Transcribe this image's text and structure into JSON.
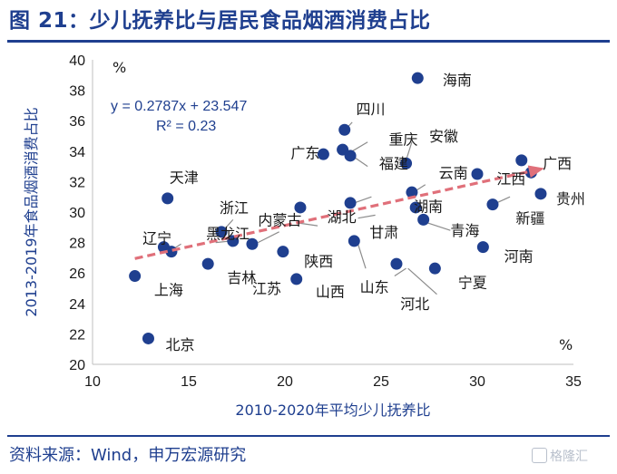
{
  "figure": {
    "title": "图 21：少儿抚养比与居民食品烟酒消费占比",
    "source": "资料来源：Wind，申万宏源研究",
    "watermark": "格隆汇"
  },
  "chart_data": {
    "type": "scatter",
    "xlabel": "2010-2020年平均少儿抚养比",
    "ylabel": "2013-2019年食品烟酒消费占比",
    "x_unit": "%",
    "y_unit": "%",
    "xlim": [
      10,
      35
    ],
    "ylim": [
      20,
      40
    ],
    "xticks": [
      10,
      15,
      20,
      25,
      30,
      35
    ],
    "yticks": [
      20,
      22,
      24,
      26,
      28,
      30,
      32,
      34,
      36,
      38,
      40
    ],
    "grid": false,
    "point_color": "#1f3f8f",
    "trend_color": "#e0707a",
    "trendline": {
      "slope": 0.2787,
      "intercept": 23.547,
      "x_range": [
        12.2,
        33.3
      ]
    },
    "equation": "y = 0.2787x + 23.547",
    "r_squared": "R² = 0.23",
    "points": [
      {
        "name": "北京",
        "x": 12.9,
        "y": 21.7
      },
      {
        "name": "上海",
        "x": 12.2,
        "y": 25.8
      },
      {
        "name": "天津",
        "x": 13.9,
        "y": 30.9
      },
      {
        "name": "辽宁",
        "x": 13.7,
        "y": 27.7
      },
      {
        "name": "",
        "x": 14.1,
        "y": 27.4
      },
      {
        "name": "黑龙江",
        "x": 16.0,
        "y": 26.6
      },
      {
        "name": "浙江",
        "x": 16.7,
        "y": 28.7
      },
      {
        "name": "吉林",
        "x": 17.3,
        "y": 28.1
      },
      {
        "name": "内蒙古",
        "x": 18.3,
        "y": 27.9
      },
      {
        "name": "江苏",
        "x": 19.9,
        "y": 27.4
      },
      {
        "name": "陕西",
        "x": 20.8,
        "y": 30.3
      },
      {
        "name": "山西",
        "x": 20.6,
        "y": 25.6
      },
      {
        "name": "广东",
        "x": 22.0,
        "y": 33.8
      },
      {
        "name": "四川",
        "x": 23.1,
        "y": 35.4
      },
      {
        "name": "重庆",
        "x": 23.0,
        "y": 34.1
      },
      {
        "name": "",
        "x": 23.4,
        "y": 33.7
      },
      {
        "name": "福建",
        "x": 23.4,
        "y": 30.6
      },
      {
        "name": "湖北",
        "x": 23.6,
        "y": 28.1
      },
      {
        "name": "山东",
        "x": 25.8,
        "y": 26.6
      },
      {
        "name": "安徽",
        "x": 26.3,
        "y": 33.2
      },
      {
        "name": "甘肃",
        "x": 26.6,
        "y": 31.3
      },
      {
        "name": "河北",
        "x": 26.8,
        "y": 30.3
      },
      {
        "name": "海南",
        "x": 26.9,
        "y": 38.8
      },
      {
        "name": "湖南",
        "x": 27.2,
        "y": 29.5
      },
      {
        "name": "宁夏",
        "x": 27.8,
        "y": 26.3
      },
      {
        "name": "云南",
        "x": 30.0,
        "y": 32.5
      },
      {
        "name": "河南",
        "x": 30.3,
        "y": 27.7
      },
      {
        "name": "青海",
        "x": 30.8,
        "y": 30.5
      },
      {
        "name": "江西",
        "x": 32.3,
        "y": 33.4
      },
      {
        "name": "广西",
        "x": 32.8,
        "y": 32.6
      },
      {
        "name": "贵州",
        "x": 33.3,
        "y": 31.2
      }
    ],
    "labels": [
      {
        "text": "海南",
        "x": 28.2,
        "y": 38.7
      },
      {
        "text": "四川",
        "x": 23.7,
        "y": 36.8
      },
      {
        "text": "重庆",
        "x": 25.4,
        "y": 34.8
      },
      {
        "text": "安徽",
        "x": 27.5,
        "y": 35.0
      },
      {
        "text": "广东",
        "x": 20.3,
        "y": 33.9
      },
      {
        "text": "福建",
        "x": 24.9,
        "y": 33.2
      },
      {
        "text": "云南",
        "x": 28.0,
        "y": 32.6
      },
      {
        "text": "广西",
        "x": 33.4,
        "y": 33.2
      },
      {
        "text": "江西",
        "x": 31.0,
        "y": 32.2
      },
      {
        "text": "天津",
        "x": 14.0,
        "y": 32.3
      },
      {
        "text": "浙江",
        "x": 16.6,
        "y": 30.3
      },
      {
        "text": "内蒙古",
        "x": 18.6,
        "y": 29.5
      },
      {
        "text": "湖北",
        "x": 22.2,
        "y": 29.7
      },
      {
        "text": "湖南",
        "x": 26.7,
        "y": 30.4
      },
      {
        "text": "贵州",
        "x": 34.1,
        "y": 30.9
      },
      {
        "text": "新疆",
        "x": 32.0,
        "y": 29.6
      },
      {
        "text": "甘肃",
        "x": 24.4,
        "y": 28.7
      },
      {
        "text": "青海",
        "x": 28.6,
        "y": 28.8
      },
      {
        "text": "辽宁",
        "x": 12.6,
        "y": 28.3
      },
      {
        "text": "黑龙江",
        "x": 15.9,
        "y": 28.6
      },
      {
        "text": "河南",
        "x": 31.4,
        "y": 27.1
      },
      {
        "text": "陕西",
        "x": 21.0,
        "y": 26.8
      },
      {
        "text": "吉林",
        "x": 17.0,
        "y": 25.7
      },
      {
        "text": "江苏",
        "x": 18.3,
        "y": 25.0
      },
      {
        "text": "上海",
        "x": 13.2,
        "y": 24.9
      },
      {
        "text": "山西",
        "x": 21.6,
        "y": 24.8
      },
      {
        "text": "山东",
        "x": 23.9,
        "y": 25.1
      },
      {
        "text": "宁夏",
        "x": 29.0,
        "y": 25.4
      },
      {
        "text": "河北",
        "x": 26.0,
        "y": 24.0
      },
      {
        "text": "北京",
        "x": 13.8,
        "y": 21.3
      }
    ],
    "leaders": [
      {
        "from": [
          23.5,
          35.9
        ],
        "to": [
          23.2,
          35.5
        ]
      },
      {
        "from": [
          24.3,
          34.6
        ],
        "to": [
          23.5,
          34.0
        ]
      },
      {
        "from": [
          26.6,
          34.6
        ],
        "to": [
          26.3,
          33.4
        ]
      },
      {
        "from": [
          24.3,
          33.0
        ],
        "to": [
          23.5,
          33.7
        ]
      },
      {
        "from": [
          24.5,
          31.0
        ],
        "to": [
          23.6,
          30.6
        ]
      },
      {
        "from": [
          24.7,
          29.8
        ],
        "to": [
          23.8,
          29.6
        ]
      },
      {
        "from": [
          27.3,
          31.8
        ],
        "to": [
          26.8,
          31.4
        ]
      },
      {
        "from": [
          21.7,
          29.1
        ],
        "to": [
          20.6,
          29.3
        ]
      },
      {
        "from": [
          26.6,
          30.2
        ],
        "to": [
          27.0,
          30.3
        ]
      },
      {
        "from": [
          28.6,
          28.8
        ],
        "to": [
          27.4,
          29.3
        ]
      },
      {
        "from": [
          17.3,
          29.5
        ],
        "to": [
          16.8,
          28.8
        ]
      },
      {
        "from": [
          19.7,
          28.7
        ],
        "to": [
          18.6,
          28.0
        ]
      },
      {
        "from": [
          16.4,
          28.0
        ],
        "to": [
          17.2,
          28.1
        ]
      },
      {
        "from": [
          14.6,
          27.9
        ],
        "to": [
          14.1,
          27.5
        ]
      },
      {
        "from": [
          25.7,
          25.8
        ],
        "to": [
          26.3,
          26.3
        ]
      },
      {
        "from": [
          24.2,
          26.3
        ],
        "to": [
          23.8,
          27.9
        ]
      },
      {
        "from": [
          27.9,
          24.6
        ],
        "to": [
          26.4,
          26.3
        ]
      },
      {
        "from": [
          31.7,
          31.0
        ],
        "to": [
          31.0,
          30.6
        ]
      }
    ]
  }
}
